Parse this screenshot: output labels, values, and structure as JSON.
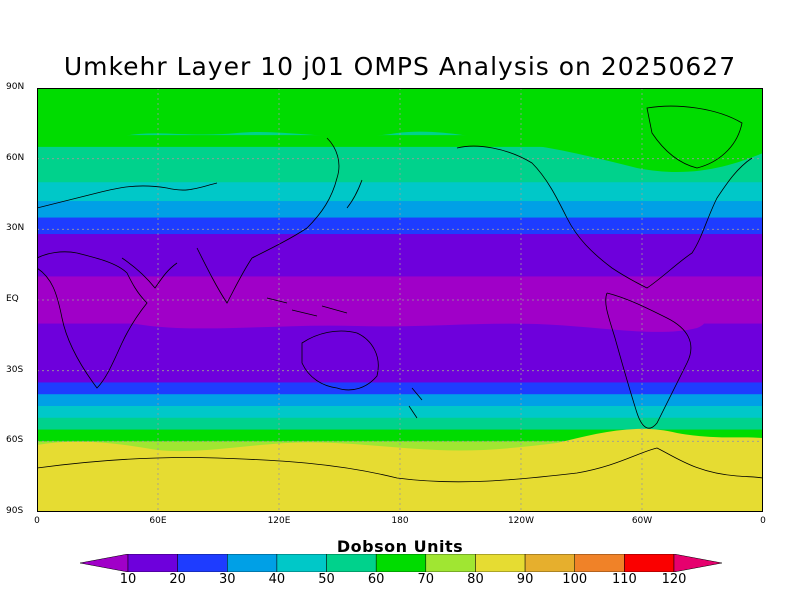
{
  "title": "Umkehr Layer 10 j01 OMPS Analysis on 20250627",
  "y_axis": {
    "labels": [
      "90N",
      "60N",
      "30N",
      "EQ",
      "30S",
      "60S",
      "90S"
    ],
    "values": [
      90,
      60,
      30,
      0,
      -30,
      -60,
      -90
    ]
  },
  "x_axis": {
    "labels": [
      "0",
      "60E",
      "120E",
      "180",
      "120W",
      "60W",
      "0"
    ],
    "values": [
      0,
      60,
      120,
      180,
      240,
      300,
      360
    ]
  },
  "colorbar": {
    "title": "Dobson Units",
    "labels": [
      "10",
      "20",
      "30",
      "40",
      "50",
      "60",
      "70",
      "80",
      "90",
      "100",
      "110",
      "120"
    ],
    "colors": [
      "#a000c8",
      "#6e00dc",
      "#1e3cff",
      "#00a0e6",
      "#00c8c8",
      "#00d28c",
      "#00dc00",
      "#a0e632",
      "#e6dc32",
      "#e6af2d",
      "#f08228",
      "#fa0000",
      "#e6006e"
    ]
  },
  "bands": {
    "lat_ticks": [
      90,
      75,
      70,
      65,
      60,
      50,
      42,
      35,
      28,
      20,
      10,
      0,
      -10,
      -20,
      -28,
      -35,
      -40,
      -45,
      -50,
      -55,
      -60,
      -65,
      -90
    ],
    "level_index": [
      5,
      5,
      6,
      5,
      5,
      4,
      3,
      2,
      1,
      1,
      0,
      0,
      1,
      1,
      1,
      2,
      3,
      4,
      5,
      6,
      7,
      8,
      8
    ]
  }
}
